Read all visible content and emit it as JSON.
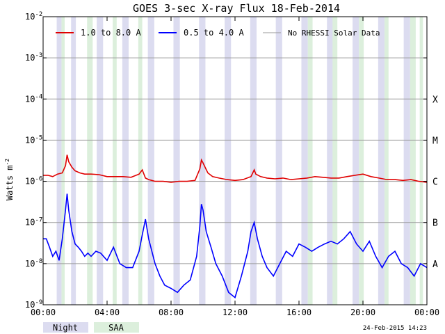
{
  "chart_data": {
    "type": "line",
    "title": "GOES 3-sec X-ray Flux   18-Feb-2014",
    "ylabel": "Watts m",
    "ylabel_sup": "-2",
    "yscale": "log",
    "ylim": [
      1e-09,
      0.01
    ],
    "xlim": [
      0,
      24
    ],
    "x_unit": "hours UT",
    "x_tick_values": [
      0,
      4,
      8,
      12,
      16,
      20,
      24
    ],
    "x_tick_labels": [
      "00:00",
      "04:00",
      "08:00",
      "12:00",
      "16:00",
      "20:00",
      "00:00"
    ],
    "y_ticks": [
      {
        "mant": "10",
        "exp": "-9",
        "value": 1e-09
      },
      {
        "mant": "10",
        "exp": "-8",
        "value": 1e-08
      },
      {
        "mant": "10",
        "exp": "-7",
        "value": 1e-07
      },
      {
        "mant": "10",
        "exp": "-6",
        "value": 1e-06
      },
      {
        "mant": "10",
        "exp": "-5",
        "value": 1e-05
      },
      {
        "mant": "10",
        "exp": "-4",
        "value": 0.0001
      },
      {
        "mant": "10",
        "exp": "-3",
        "value": 0.001
      },
      {
        "mant": "10",
        "exp": "-2",
        "value": 0.01
      }
    ],
    "flare_classes": [
      {
        "label": "A",
        "value": 1e-08
      },
      {
        "label": "B",
        "value": 1e-07
      },
      {
        "label": "C",
        "value": 1e-06
      },
      {
        "label": "M",
        "value": 1e-05
      },
      {
        "label": "X",
        "value": 0.0001
      }
    ],
    "grid": true,
    "legend_position": "top",
    "legend": [
      {
        "label": "1.0 to 8.0 A",
        "color": "#e00000"
      },
      {
        "label": "0.5 to 4.0 A",
        "color": "#0000ff"
      },
      {
        "label": "No RHESSI Solar Data",
        "color": "#999999"
      }
    ],
    "night_intervals": [
      [
        0.85,
        1.15
      ],
      [
        1.75,
        2.05
      ],
      [
        3.35,
        3.75
      ],
      [
        4.95,
        5.35
      ],
      [
        6.55,
        6.95
      ],
      [
        8.15,
        8.55
      ],
      [
        9.75,
        10.15
      ],
      [
        11.35,
        11.75
      ],
      [
        12.95,
        13.35
      ],
      [
        14.55,
        14.95
      ],
      [
        16.15,
        16.55
      ],
      [
        17.75,
        18.15
      ],
      [
        19.35,
        19.75
      ],
      [
        20.95,
        21.35
      ],
      [
        22.55,
        22.95
      ]
    ],
    "saa_intervals": [
      [
        1.15,
        1.35
      ],
      [
        2.75,
        3.1
      ],
      [
        4.35,
        4.6
      ],
      [
        5.95,
        6.2
      ],
      [
        16.55,
        16.85
      ],
      [
        18.1,
        18.4
      ],
      [
        19.75,
        20.05
      ],
      [
        21.35,
        21.6
      ],
      [
        22.95,
        23.3
      ],
      [
        23.55,
        23.75
      ]
    ],
    "series": [
      {
        "name": "1.0 to 8.0 A",
        "color": "#e00000",
        "x": [
          0,
          0.3,
          0.6,
          0.9,
          1.2,
          1.4,
          1.5,
          1.6,
          1.8,
          2.0,
          2.3,
          2.6,
          3.0,
          3.5,
          4.0,
          4.5,
          5.0,
          5.5,
          6.0,
          6.2,
          6.4,
          6.6,
          6.8,
          7.0,
          7.5,
          8.0,
          8.5,
          9.0,
          9.5,
          9.8,
          9.9,
          10.0,
          10.3,
          10.6,
          11.0,
          11.5,
          12.0,
          12.5,
          13.0,
          13.2,
          13.3,
          13.6,
          14.0,
          14.5,
          15.0,
          15.5,
          16.0,
          16.5,
          17.0,
          17.5,
          18.0,
          18.5,
          19.0,
          19.5,
          20.0,
          20.5,
          21.0,
          21.5,
          22.0,
          22.5,
          23.0,
          23.5,
          24.0
        ],
        "y": [
          1.4e-06,
          1.4e-06,
          1.3e-06,
          1.5e-06,
          1.6e-06,
          2.4e-06,
          4.4e-06,
          3e-06,
          2.2e-06,
          1.8e-06,
          1.6e-06,
          1.5e-06,
          1.5e-06,
          1.45e-06,
          1.3e-06,
          1.3e-06,
          1.3e-06,
          1.25e-06,
          1.5e-06,
          1.9e-06,
          1.2e-06,
          1.1e-06,
          1.05e-06,
          1e-06,
          1e-06,
          9.5e-07,
          1e-06,
          1e-06,
          1.05e-06,
          2e-06,
          3.3e-06,
          2.8e-06,
          1.6e-06,
          1.3e-06,
          1.2e-06,
          1.1e-06,
          1.05e-06,
          1.1e-06,
          1.3e-06,
          1.9e-06,
          1.5e-06,
          1.3e-06,
          1.2e-06,
          1.15e-06,
          1.2e-06,
          1.1e-06,
          1.15e-06,
          1.2e-06,
          1.3e-06,
          1.25e-06,
          1.2e-06,
          1.2e-06,
          1.3e-06,
          1.4e-06,
          1.5e-06,
          1.3e-06,
          1.2e-06,
          1.1e-06,
          1.1e-06,
          1.05e-06,
          1.1e-06,
          1e-06,
          9.5e-07
        ]
      },
      {
        "name": "0.5 to 4.0 A",
        "color": "#0000ff",
        "x": [
          0,
          0.2,
          0.4,
          0.6,
          0.8,
          1.0,
          1.2,
          1.4,
          1.5,
          1.6,
          1.8,
          2.0,
          2.2,
          2.4,
          2.6,
          2.8,
          3.0,
          3.3,
          3.6,
          4.0,
          4.4,
          4.8,
          5.2,
          5.6,
          6.0,
          6.2,
          6.4,
          6.6,
          6.8,
          7.0,
          7.3,
          7.6,
          8.0,
          8.4,
          8.8,
          9.2,
          9.6,
          9.8,
          9.9,
          10.0,
          10.2,
          10.5,
          10.8,
          11.2,
          11.6,
          12.0,
          12.4,
          12.8,
          13.0,
          13.2,
          13.4,
          13.7,
          14.0,
          14.4,
          14.8,
          15.2,
          15.6,
          16.0,
          16.4,
          16.8,
          17.2,
          17.6,
          18.0,
          18.4,
          18.8,
          19.2,
          19.6,
          20.0,
          20.4,
          20.8,
          21.2,
          21.6,
          22.0,
          22.4,
          22.8,
          23.2,
          23.6,
          24.0
        ],
        "y": [
          4e-08,
          4e-08,
          2.5e-08,
          1.5e-08,
          2e-08,
          1.2e-08,
          4e-08,
          2e-07,
          5e-07,
          2e-07,
          6e-08,
          3e-08,
          2.5e-08,
          2e-08,
          1.5e-08,
          1.8e-08,
          1.5e-08,
          2e-08,
          1.8e-08,
          1.2e-08,
          2.5e-08,
          1e-08,
          8e-09,
          8e-09,
          2e-08,
          5e-08,
          1.2e-07,
          4e-08,
          2e-08,
          1e-08,
          5e-09,
          3e-09,
          2.5e-09,
          2e-09,
          3e-09,
          4e-09,
          1.5e-08,
          8e-08,
          2.8e-07,
          2e-07,
          6e-08,
          2.5e-08,
          1e-08,
          5e-09,
          2e-09,
          1.5e-09,
          5e-09,
          2e-08,
          6e-08,
          1e-07,
          4e-08,
          1.5e-08,
          8e-09,
          5e-09,
          1e-08,
          2e-08,
          1.5e-08,
          3e-08,
          2.5e-08,
          2e-08,
          2.5e-08,
          3e-08,
          3.5e-08,
          3e-08,
          4e-08,
          6e-08,
          3e-08,
          2e-08,
          3.5e-08,
          1.5e-08,
          8e-09,
          1.5e-08,
          2e-08,
          1e-08,
          8e-09,
          5e-09,
          1e-08,
          8e-09
        ]
      }
    ]
  },
  "footer": {
    "night_label": "Night",
    "saa_label": "SAA",
    "timestamp": "24-Feb-2015 14:23"
  },
  "colors": {
    "night": "#dcdcf0",
    "saa": "#dcefdc",
    "grid": "#9a9a9a",
    "no_rhessi": "#999999"
  }
}
